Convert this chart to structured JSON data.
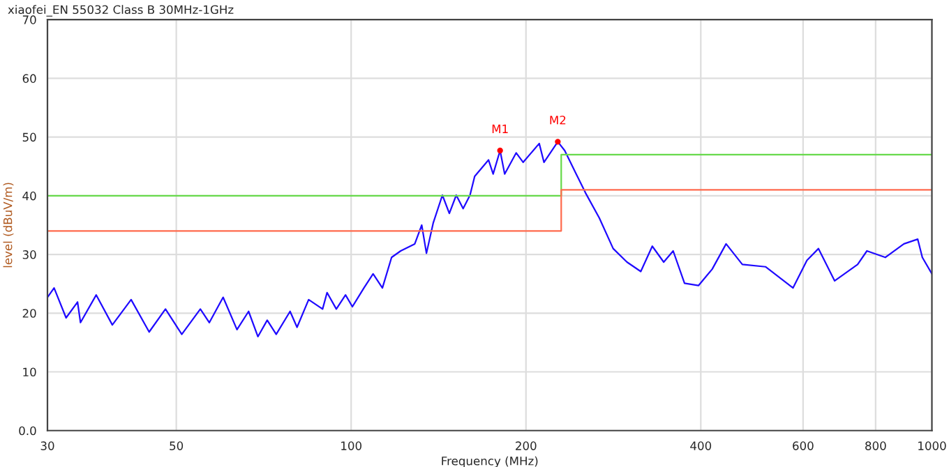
{
  "chart_data": {
    "type": "line",
    "title": "xiaofei_EN 55032 Class B 30MHz-1GHz",
    "xlabel": "Frequency (MHz)",
    "ylabel": "level (dBuV/m)",
    "log": "x",
    "grid": true,
    "xlim": [
      30,
      1000
    ],
    "xticks": [
      30,
      50,
      100,
      200,
      400,
      600,
      800,
      1000
    ],
    "ylim": [
      0,
      70
    ],
    "yticks": [
      {
        "value": 0,
        "label": "0.0"
      },
      10,
      20,
      30,
      40,
      50,
      60,
      70
    ],
    "series": [
      {
        "color": "#1f0aff",
        "x": [
          30,
          30.8,
          32.3,
          33.8,
          34.2,
          36.4,
          38.8,
          41.8,
          44.9,
          47.9,
          51.1,
          55.0,
          57.0,
          60.2,
          63.6,
          66.6,
          69.1,
          71.7,
          74.3,
          78.5,
          80.7,
          84.5,
          89.3,
          90.9,
          94.3,
          97.8,
          100.5,
          105.2,
          109.1,
          113.2,
          117.4,
          121.7,
          128.7,
          132.3,
          134.8,
          138.5,
          143.6,
          147.6,
          151.7,
          155.9,
          160.2,
          163.2,
          172.4,
          175.6,
          180.5,
          183.8,
          192.4,
          197.8,
          210.8,
          214.8,
          226.9,
          233.2,
          244.1,
          253.2,
          267.5,
          282.6,
          298.5,
          315.3,
          330.0,
          345.3,
          358.5,
          375.0,
          396.3,
          418.5,
          442.2,
          471.6,
          516.9,
          576.6,
          609.3,
          637.8,
          680.1,
          744.9,
          772.8,
          831.3,
          894.9,
          945.3,
          962.7,
          1000
        ],
        "values": [
          22.7,
          24.3,
          19.2,
          21.9,
          18.4,
          23.1,
          18.0,
          22.3,
          16.8,
          20.7,
          16.4,
          20.7,
          18.4,
          22.7,
          17.2,
          20.3,
          16.0,
          18.8,
          16.4,
          20.3,
          17.6,
          22.3,
          20.7,
          23.5,
          20.7,
          23.1,
          21.1,
          24.3,
          26.7,
          24.3,
          29.5,
          30.6,
          31.8,
          35.0,
          30.2,
          35.4,
          40.1,
          37.0,
          40.1,
          37.8,
          40.1,
          43.3,
          46.1,
          43.7,
          47.7,
          43.7,
          47.3,
          45.7,
          48.9,
          45.7,
          49.2,
          47.7,
          43.7,
          40.5,
          36.2,
          31.0,
          28.7,
          27.1,
          31.4,
          28.7,
          30.6,
          25.1,
          24.7,
          27.5,
          31.8,
          28.3,
          27.9,
          24.3,
          29.0,
          31.0,
          25.5,
          28.3,
          30.6,
          29.5,
          31.8,
          32.6,
          29.5,
          26.7
        ]
      },
      {
        "color": "#66d94a",
        "x": [
          30,
          230,
          230,
          1000
        ],
        "values": [
          40,
          40,
          47,
          47
        ]
      },
      {
        "color": "#ff6a4d",
        "x": [
          30,
          230,
          230,
          1000
        ],
        "values": [
          34,
          34,
          41,
          41
        ]
      }
    ],
    "annotations": [
      {
        "text": "M1",
        "x": 180.5,
        "y": 47.7
      },
      {
        "text": "M2",
        "x": 226.9,
        "y": 49.2
      }
    ]
  }
}
